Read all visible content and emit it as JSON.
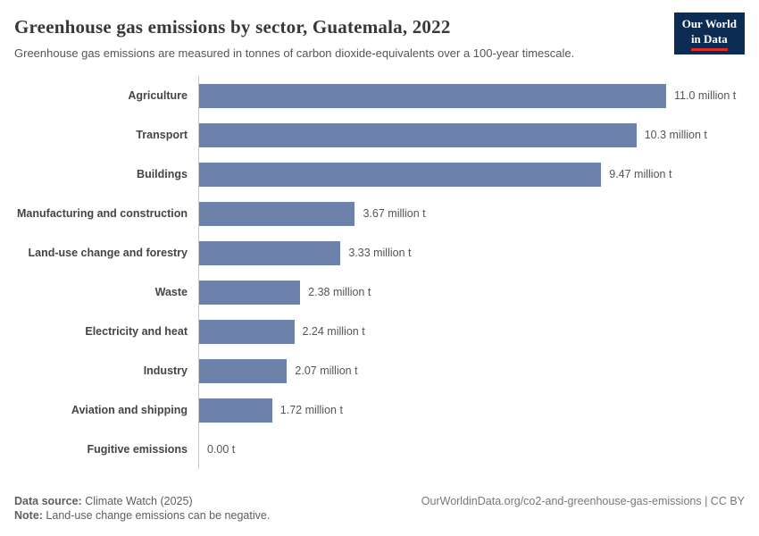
{
  "header": {
    "title": "Greenhouse gas emissions by sector, Guatemala, 2022",
    "subtitle": "Greenhouse gas emissions are measured in tonnes of carbon dioxide-equivalents over a 100-year timescale.",
    "logo": {
      "line1": "Our World",
      "line2": "in Data"
    }
  },
  "chart_data": {
    "type": "bar",
    "orientation": "horizontal",
    "title": "Greenhouse gas emissions by sector, Guatemala, 2022",
    "categories": [
      "Agriculture",
      "Transport",
      "Buildings",
      "Manufacturing and construction",
      "Land-use change and forestry",
      "Waste",
      "Electricity and heat",
      "Industry",
      "Aviation and shipping",
      "Fugitive emissions"
    ],
    "values": [
      11.0,
      10.3,
      9.47,
      3.67,
      3.33,
      2.38,
      2.24,
      2.07,
      1.72,
      0.0
    ],
    "value_labels": [
      "11.0 million t",
      "10.3 million t",
      "9.47 million t",
      "3.67 million t",
      "3.33 million t",
      "2.38 million t",
      "2.24 million t",
      "2.07 million t",
      "1.72 million t",
      "0.00 t"
    ],
    "unit": "million t",
    "xlim": [
      0,
      11.0
    ],
    "bar_color": "#6c82aa",
    "grid": false,
    "legend": "none"
  },
  "footer": {
    "source_label": "Data source:",
    "source_value": " Climate Watch (2025)",
    "note_label": "Note:",
    "note_value": " Land-use change emissions can be negative.",
    "credit": "OurWorldinData.org/co2-and-greenhouse-gas-emissions | CC BY"
  }
}
